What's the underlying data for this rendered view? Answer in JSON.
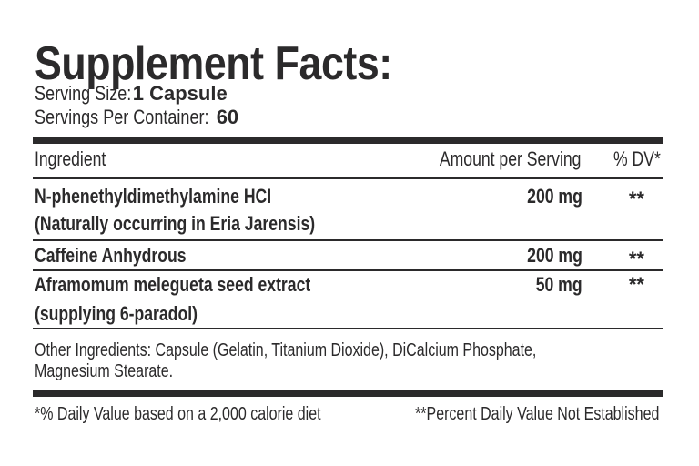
{
  "title": "Supplement Facts:",
  "serving_size": {
    "label": "Serving Size:",
    "value": "1 Capsule"
  },
  "servings_per_container": {
    "label": "Servings Per Container:",
    "value": "60"
  },
  "table": {
    "headers": {
      "ingredient": "Ingredient",
      "amount": "Amount per Serving",
      "dv": "% DV*"
    },
    "rows": [
      {
        "name": "N-phenethyldimethylamine HCI",
        "note": "(Naturally occurring in Eria Jarensis)",
        "amount": "200 mg",
        "dv": "**"
      },
      {
        "name": "Caffeine Anhydrous",
        "amount": "200 mg",
        "dv": "**"
      },
      {
        "name": "Aframomum melegueta seed extract",
        "note": "(supplying 6-paradol)",
        "amount": "50 mg",
        "dv": "**"
      }
    ]
  },
  "other_ingredients": {
    "line1": "Other Ingredients: Capsule (Gelatin, Titanium Dioxide), DiCalcium Phosphate,",
    "line2": "Magnesium Stearate."
  },
  "footnotes": {
    "daily_value": "*% Daily Value based on a 2,000 calorie diet",
    "not_established": "**Percent Daily Value Not Established"
  }
}
